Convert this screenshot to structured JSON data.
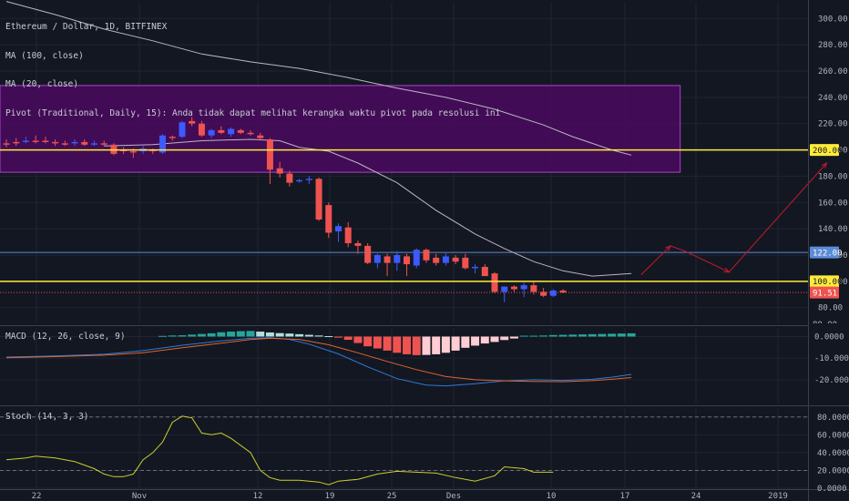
{
  "header": {
    "symbol_line": "Ethereum / Dollar, 1D, BITFINEX",
    "ma100": "MA (100, close)",
    "ma20": "MA (20, close)",
    "pivot_note": "Pivot (Traditional, Daily, 15): Anda tidak dapat melihat kerangka waktu pivot pada resolusi ini"
  },
  "indicators": {
    "macd_title": "MACD (12, 26, close, 9)",
    "stoch_title": "Stoch (14, 3, 3)"
  },
  "colors": {
    "background": "#131722",
    "up": "#3d5afe",
    "down": "#ef5350",
    "zone_fill": "#4a0a5e",
    "zone_border": "#b040d0",
    "level": "#ffeb3b",
    "resistance": "#5b8cd6",
    "ma": "#b9b6c4",
    "macd": "#2f7bd6",
    "signal": "#e0642c",
    "stoch": "#c8d02c",
    "arrow": "#c8192c",
    "price_tag": "#ef5350"
  },
  "chart_data": [
    {
      "type": "candlestick",
      "title": "Ethereum / Dollar, 1D, BITFINEX",
      "ylim": [
        68,
        312
      ],
      "y_ticks": [
        80,
        100,
        120,
        140,
        160,
        180,
        200,
        220,
        240,
        260,
        280,
        300
      ],
      "x_tick_labels": [
        "22",
        "Nov",
        "12",
        "19",
        "25",
        "Des",
        "10",
        "17",
        "24",
        "2019"
      ],
      "candles": [
        {
          "o": 205,
          "h": 208,
          "l": 202,
          "c": 204
        },
        {
          "o": 206,
          "h": 209,
          "l": 203,
          "c": 205
        },
        {
          "o": 206,
          "h": 210,
          "l": 205,
          "c": 207
        },
        {
          "o": 207,
          "h": 211,
          "l": 205,
          "c": 206
        },
        {
          "o": 207,
          "h": 210,
          "l": 205,
          "c": 206
        },
        {
          "o": 206,
          "h": 208,
          "l": 203,
          "c": 205
        },
        {
          "o": 205,
          "h": 207,
          "l": 203,
          "c": 204
        },
        {
          "o": 205,
          "h": 208,
          "l": 203,
          "c": 206
        },
        {
          "o": 206,
          "h": 208,
          "l": 203,
          "c": 204
        },
        {
          "o": 204,
          "h": 207,
          "l": 203,
          "c": 205
        },
        {
          "o": 205,
          "h": 207,
          "l": 203,
          "c": 204
        },
        {
          "o": 204,
          "h": 205,
          "l": 196,
          "c": 197
        },
        {
          "o": 200,
          "h": 202,
          "l": 197,
          "c": 199
        },
        {
          "o": 199,
          "h": 201,
          "l": 194,
          "c": 198
        },
        {
          "o": 199,
          "h": 203,
          "l": 197,
          "c": 201
        },
        {
          "o": 200,
          "h": 201,
          "l": 197,
          "c": 199
        },
        {
          "o": 198,
          "h": 212,
          "l": 197,
          "c": 211
        },
        {
          "o": 210,
          "h": 211,
          "l": 207,
          "c": 209
        },
        {
          "o": 210,
          "h": 222,
          "l": 209,
          "c": 221
        },
        {
          "o": 222,
          "h": 225,
          "l": 218,
          "c": 220
        },
        {
          "o": 220,
          "h": 222,
          "l": 210,
          "c": 211
        },
        {
          "o": 211,
          "h": 216,
          "l": 209,
          "c": 215
        },
        {
          "o": 215,
          "h": 218,
          "l": 212,
          "c": 213
        },
        {
          "o": 212,
          "h": 217,
          "l": 210,
          "c": 216
        },
        {
          "o": 215,
          "h": 216,
          "l": 212,
          "c": 213
        },
        {
          "o": 213,
          "h": 215,
          "l": 211,
          "c": 212
        },
        {
          "o": 211,
          "h": 213,
          "l": 207,
          "c": 209
        },
        {
          "o": 208,
          "h": 209,
          "l": 174,
          "c": 185
        },
        {
          "o": 186,
          "h": 191,
          "l": 179,
          "c": 182
        },
        {
          "o": 182,
          "h": 184,
          "l": 172,
          "c": 175
        },
        {
          "o": 176,
          "h": 178,
          "l": 175,
          "c": 177
        },
        {
          "o": 177,
          "h": 180,
          "l": 174,
          "c": 178
        },
        {
          "o": 178,
          "h": 179,
          "l": 146,
          "c": 147
        },
        {
          "o": 158,
          "h": 160,
          "l": 133,
          "c": 137
        },
        {
          "o": 138,
          "h": 144,
          "l": 130,
          "c": 142
        },
        {
          "o": 141,
          "h": 145,
          "l": 126,
          "c": 129
        },
        {
          "o": 129,
          "h": 131,
          "l": 121,
          "c": 127
        },
        {
          "o": 127,
          "h": 129,
          "l": 113,
          "c": 114
        },
        {
          "o": 114,
          "h": 121,
          "l": 110,
          "c": 120
        },
        {
          "o": 119,
          "h": 121,
          "l": 104,
          "c": 114
        },
        {
          "o": 114,
          "h": 123,
          "l": 108,
          "c": 120
        },
        {
          "o": 119,
          "h": 121,
          "l": 104,
          "c": 113
        },
        {
          "o": 112,
          "h": 125,
          "l": 110,
          "c": 124
        },
        {
          "o": 124,
          "h": 125,
          "l": 114,
          "c": 116
        },
        {
          "o": 118,
          "h": 121,
          "l": 112,
          "c": 114
        },
        {
          "o": 114,
          "h": 122,
          "l": 112,
          "c": 119
        },
        {
          "o": 118,
          "h": 120,
          "l": 113,
          "c": 115
        },
        {
          "o": 118,
          "h": 121,
          "l": 109,
          "c": 110
        },
        {
          "o": 110,
          "h": 113,
          "l": 106,
          "c": 111
        },
        {
          "o": 111,
          "h": 113,
          "l": 104,
          "c": 104
        },
        {
          "o": 106,
          "h": 107,
          "l": 91,
          "c": 92
        },
        {
          "o": 92,
          "h": 96,
          "l": 84,
          "c": 96
        },
        {
          "o": 96,
          "h": 97,
          "l": 92,
          "c": 94
        },
        {
          "o": 94,
          "h": 99,
          "l": 88,
          "c": 97
        },
        {
          "o": 97,
          "h": 100,
          "l": 90,
          "c": 92
        },
        {
          "o": 92,
          "h": 95,
          "l": 88,
          "c": 89
        },
        {
          "o": 89,
          "h": 94,
          "l": 88,
          "c": 93
        },
        {
          "o": 93,
          "h": 94,
          "l": 91,
          "c": 91.51
        }
      ],
      "ma100": [
        [
          0,
          313
        ],
        [
          5,
          303
        ],
        [
          10,
          292
        ],
        [
          15,
          283
        ],
        [
          20,
          273
        ],
        [
          25,
          267
        ],
        [
          30,
          262
        ],
        [
          35,
          255
        ],
        [
          40,
          247
        ],
        [
          45,
          240
        ],
        [
          50,
          231
        ],
        [
          55,
          219
        ],
        [
          58,
          210
        ],
        [
          60,
          205
        ],
        [
          62,
          200
        ],
        [
          64,
          196
        ]
      ],
      "ma20": [
        [
          10,
          203
        ],
        [
          15,
          204
        ],
        [
          20,
          207
        ],
        [
          25,
          208
        ],
        [
          28,
          207
        ],
        [
          30,
          202
        ],
        [
          33,
          199
        ],
        [
          36,
          190
        ],
        [
          40,
          175
        ],
        [
          44,
          154
        ],
        [
          48,
          136
        ],
        [
          51,
          125
        ],
        [
          54,
          115
        ],
        [
          57,
          108
        ],
        [
          60,
          104
        ],
        [
          64,
          106
        ]
      ],
      "zone": {
        "x_start": 0,
        "x_end": 69,
        "low": 183,
        "high": 249
      },
      "levels": [
        {
          "value": 200,
          "label": "200.00"
        },
        {
          "value": 100,
          "label": "100.00"
        }
      ],
      "resistance": {
        "value": 122,
        "label": "122.00"
      },
      "support_dotted": 91.51,
      "last_price_label": "91.51",
      "partial_label": "80.00",
      "projection": [
        [
          65,
          105
        ],
        [
          68,
          127
        ],
        [
          69.5,
          123
        ],
        [
          74,
          107
        ],
        [
          84,
          190
        ]
      ]
    },
    {
      "type": "bar+line",
      "title": "MACD (12, 26, close, 9)",
      "ylim": [
        -31,
        4
      ],
      "y_ticks": [
        0,
        -10,
        -20
      ],
      "y_tick_labels": [
        "0.0000",
        "-10.0000",
        "-20.0000"
      ],
      "histogram": [
        0.3,
        0.5,
        0.6,
        0.9,
        1.2,
        1.5,
        2.0,
        2.3,
        2.5,
        2.6,
        2.3,
        1.9,
        1.6,
        1.4,
        1.1,
        0.8,
        0.5,
        0.2,
        -0.5,
        -1.5,
        -3.0,
        -4.5,
        -5.5,
        -6.5,
        -7.5,
        -8.2,
        -8.6,
        -8.5,
        -8.2,
        -7.5,
        -6.5,
        -5.2,
        -4.2,
        -3.2,
        -2.5,
        -1.6,
        -0.9,
        0.4,
        0.4,
        0.5,
        0.7,
        0.8,
        0.9,
        1.0,
        1.1,
        1.2,
        1.3,
        1.4,
        1.5
      ],
      "histogram_start": 16,
      "macd_line": [
        [
          0,
          -9.5
        ],
        [
          5,
          -9.0
        ],
        [
          10,
          -8.2
        ],
        [
          14,
          -6.5
        ],
        [
          18,
          -4.0
        ],
        [
          22,
          -2.0
        ],
        [
          25,
          -0.8
        ],
        [
          27,
          -0.5
        ],
        [
          29,
          -1.3
        ],
        [
          31,
          -3.5
        ],
        [
          34,
          -8.0
        ],
        [
          37,
          -14.0
        ],
        [
          40,
          -19.5
        ],
        [
          43,
          -22.5
        ],
        [
          45,
          -22.8
        ],
        [
          48,
          -21.8
        ],
        [
          51,
          -20.5
        ],
        [
          54,
          -20.0
        ],
        [
          57,
          -20.3
        ],
        [
          60,
          -19.8
        ],
        [
          62,
          -18.8
        ],
        [
          64,
          -17.5
        ]
      ],
      "signal_line": [
        [
          0,
          -9.8
        ],
        [
          5,
          -9.3
        ],
        [
          10,
          -8.6
        ],
        [
          14,
          -7.5
        ],
        [
          18,
          -5.2
        ],
        [
          22,
          -3.1
        ],
        [
          25,
          -1.4
        ],
        [
          27,
          -0.8
        ],
        [
          30,
          -1.3
        ],
        [
          33,
          -3.8
        ],
        [
          36,
          -7.5
        ],
        [
          39,
          -11.5
        ],
        [
          42,
          -15.3
        ],
        [
          45,
          -18.5
        ],
        [
          48,
          -20.0
        ],
        [
          51,
          -20.5
        ],
        [
          54,
          -20.8
        ],
        [
          57,
          -20.9
        ],
        [
          60,
          -20.4
        ],
        [
          62,
          -19.8
        ],
        [
          64,
          -19.0
        ]
      ]
    },
    {
      "type": "line",
      "title": "Stoch (14, 3, 3)",
      "ylim": [
        0,
        90
      ],
      "y_ticks": [
        0,
        20,
        40,
        60,
        80
      ],
      "y_tick_labels": [
        "0.0000",
        "20.0000",
        "40.0000",
        "60.0000",
        "80.0000"
      ],
      "k_line": [
        [
          0,
          32
        ],
        [
          2,
          34
        ],
        [
          3,
          36
        ],
        [
          5,
          34
        ],
        [
          7,
          30
        ],
        [
          8,
          26
        ],
        [
          9,
          22
        ],
        [
          10,
          16
        ],
        [
          11,
          13
        ],
        [
          12,
          13
        ],
        [
          13,
          16
        ],
        [
          14,
          32
        ],
        [
          15,
          40
        ],
        [
          16,
          52
        ],
        [
          17,
          74
        ],
        [
          18,
          81
        ],
        [
          19,
          79
        ],
        [
          20,
          62
        ],
        [
          21,
          60
        ],
        [
          22,
          62
        ],
        [
          23,
          56
        ],
        [
          25,
          40
        ],
        [
          26,
          20
        ],
        [
          27,
          12
        ],
        [
          28,
          9
        ],
        [
          30,
          9
        ],
        [
          32,
          7
        ],
        [
          33,
          4
        ],
        [
          34,
          8
        ],
        [
          36,
          10
        ],
        [
          38,
          16
        ],
        [
          40,
          19
        ],
        [
          42,
          18
        ],
        [
          44,
          17
        ],
        [
          46,
          12
        ],
        [
          48,
          8
        ],
        [
          50,
          14
        ],
        [
          51,
          24
        ],
        [
          53,
          22
        ],
        [
          54,
          18
        ],
        [
          56,
          18
        ]
      ],
      "upper_band": 80,
      "lower_band": 20
    }
  ]
}
